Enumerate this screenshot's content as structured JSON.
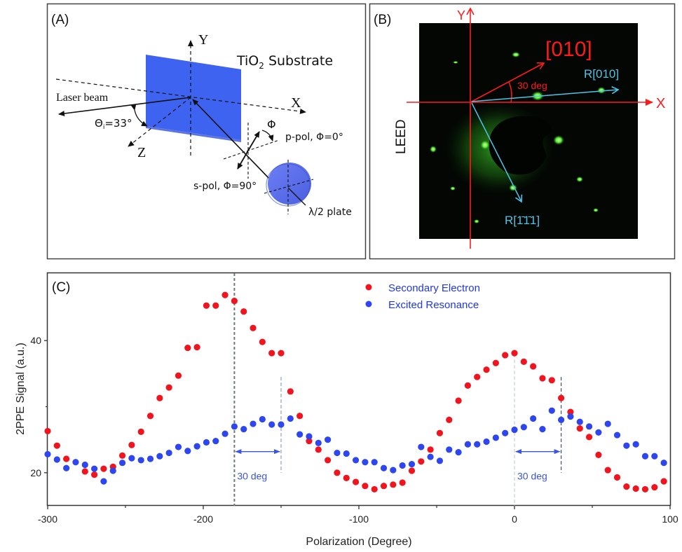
{
  "panel_a": {
    "label": "(A)",
    "substrate_label": "TiO",
    "substrate_sub": "2",
    "substrate_suffix": " Substrate",
    "laser_label": "Laser beam",
    "theta_label": "Θ",
    "theta_sub": "i",
    "theta_value": "=33°",
    "axis_x": "X",
    "axis_y": "Y",
    "axis_z": "Z",
    "phi_label": "Φ",
    "p_pol_label": "p-pol, Φ=0°",
    "s_pol_label": "s-pol, Φ=90°",
    "plate_label": "λ/2 plate",
    "substrate_color": "#3e63f0",
    "plate_color": "#5a6ef0"
  },
  "panel_b": {
    "label": "(B)",
    "side_label": "LEED",
    "axis_x": "X",
    "axis_y": "Y",
    "dir_010": "[010]",
    "angle_label": "30 deg",
    "r010_label": "R[010]",
    "r111_label": "R[1̄1̄1]",
    "axis_color": "#ff1a1a",
    "reciprocal_color": "#4fc3e6",
    "spot_color": "#3cdc28"
  },
  "chart_data": {
    "type": "scatter",
    "panel_label": "(C)",
    "title": "",
    "xlabel": "Polarization (Degree)",
    "ylabel": "2PPE Signal (a.u.)",
    "xlim": [
      -300,
      100
    ],
    "ylim": [
      15,
      50.2
    ],
    "xticks": [
      -300,
      -200,
      -100,
      0,
      100
    ],
    "xticks_minor": [
      -250,
      -150,
      -50,
      50
    ],
    "yticks": [
      20,
      40
    ],
    "yticks_minor": [
      30
    ],
    "grid": false,
    "legend_position": "top-center",
    "annotations": [
      {
        "type": "vline",
        "x": -180,
        "style": "dotted",
        "color": "#6b7b78"
      },
      {
        "type": "vline",
        "x": -150,
        "style": "dashed",
        "color": "#7f9aaf"
      },
      {
        "type": "vline",
        "x": 0,
        "style": "dashed",
        "color": "#b9c6e6"
      },
      {
        "type": "vline",
        "x": 30,
        "style": "dashed",
        "color": "#33445a"
      },
      {
        "type": "span-arrow",
        "x1": -180,
        "x2": -150,
        "y": 23.2,
        "label": "30 deg"
      },
      {
        "type": "span-arrow",
        "x1": 0,
        "x2": 30,
        "y": 23.2,
        "label": "30 deg"
      }
    ],
    "x": [
      -300,
      -294,
      -288,
      -282,
      -276,
      -270,
      -264,
      -258,
      -252,
      -246,
      -240,
      -234,
      -228,
      -222,
      -216,
      -210,
      -204,
      -198,
      -192,
      -186,
      -180,
      -174,
      -168,
      -162,
      -156,
      -150,
      -144,
      -138,
      -132,
      -126,
      -120,
      -114,
      -108,
      -102,
      -96,
      -90,
      -84,
      -78,
      -72,
      -66,
      -60,
      -54,
      -48,
      -42,
      -36,
      -30,
      -24,
      -18,
      -12,
      -6,
      0,
      6,
      12,
      18,
      24,
      30,
      36,
      42,
      48,
      54,
      60,
      66,
      72,
      78,
      84,
      90,
      96
    ],
    "series": [
      {
        "name": "Secondary Electron",
        "color": "#f0141e",
        "values": [
          26.3,
          24.1,
          22.1,
          null,
          20.2,
          19.7,
          20.6,
          20.9,
          22.6,
          24.2,
          26.2,
          28.6,
          31.3,
          32.9,
          34.7,
          38.9,
          39.0,
          45.3,
          45.3,
          46.9,
          46.0,
          44.4,
          41.9,
          39.8,
          38.1,
          38.1,
          32.3,
          28.6,
          24.8,
          23.5,
          21.9,
          20.0,
          19.2,
          18.6,
          18.0,
          17.5,
          18.0,
          18.2,
          18.5,
          20.3,
          21.7,
          23.5,
          26.0,
          28.0,
          30.9,
          33.2,
          34.5,
          35.6,
          36.6,
          37.8,
          38.1,
          36.8,
          36.1,
          34.3,
          34.0,
          31.3,
          29.2,
          26.7,
          25.4,
          22.7,
          20.4,
          19.3,
          17.9,
          17.6,
          17.5,
          17.8,
          18.7
        ]
      },
      {
        "name": "Excited Resonance",
        "color": "#2d46f0",
        "values": [
          22.8,
          22.0,
          20.7,
          21.6,
          21.2,
          20.6,
          18.7,
          20.3,
          21.5,
          22.2,
          21.9,
          22.1,
          22.5,
          23.0,
          23.9,
          23.3,
          24.0,
          24.6,
          24.8,
          25.9,
          27.0,
          26.6,
          27.4,
          28.1,
          27.3,
          27.3,
          28.2,
          25.8,
          25.5,
          24.5,
          25.0,
          23.0,
          22.9,
          21.9,
          21.6,
          21.6,
          20.7,
          20.4,
          21.1,
          21.3,
          23.9,
          22.4,
          21.8,
          23.5,
          23.1,
          24.3,
          24.3,
          24.7,
          25.3,
          26.0,
          26.5,
          26.9,
          28.2,
          26.6,
          29.4,
          28.0,
          28.5,
          27.7,
          27.0,
          26.1,
          27.4,
          25.7,
          24.1,
          24.3,
          22.5,
          22.5,
          21.5
        ]
      }
    ]
  }
}
